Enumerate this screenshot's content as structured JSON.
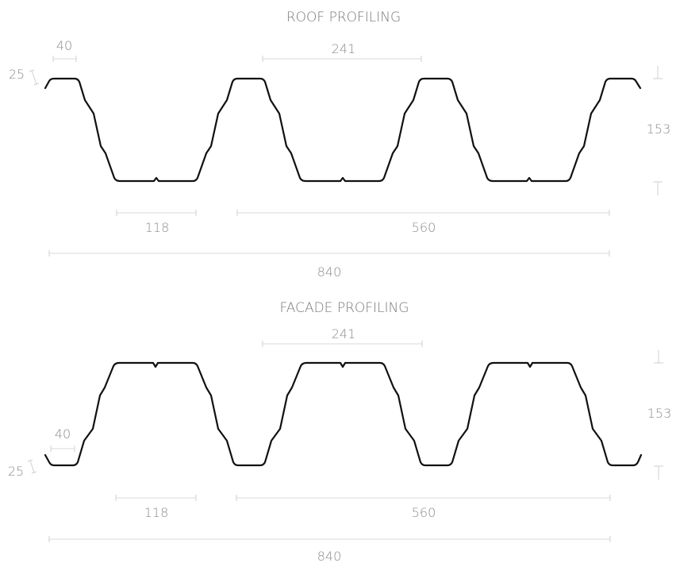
{
  "roof": {
    "title": "ROOF PROFILING",
    "dim_flange": "40",
    "dim_thickness": "25",
    "dim_rib_pitch": "241",
    "dim_height": "153",
    "dim_bottom": "118",
    "dim_cover": "560",
    "dim_total": "840"
  },
  "facade": {
    "title": "FACADE PROFILING",
    "dim_flange": "40",
    "dim_thickness": "25",
    "dim_rib_pitch": "241",
    "dim_height": "153",
    "dim_bottom": "118",
    "dim_cover": "560",
    "dim_total": "840"
  }
}
